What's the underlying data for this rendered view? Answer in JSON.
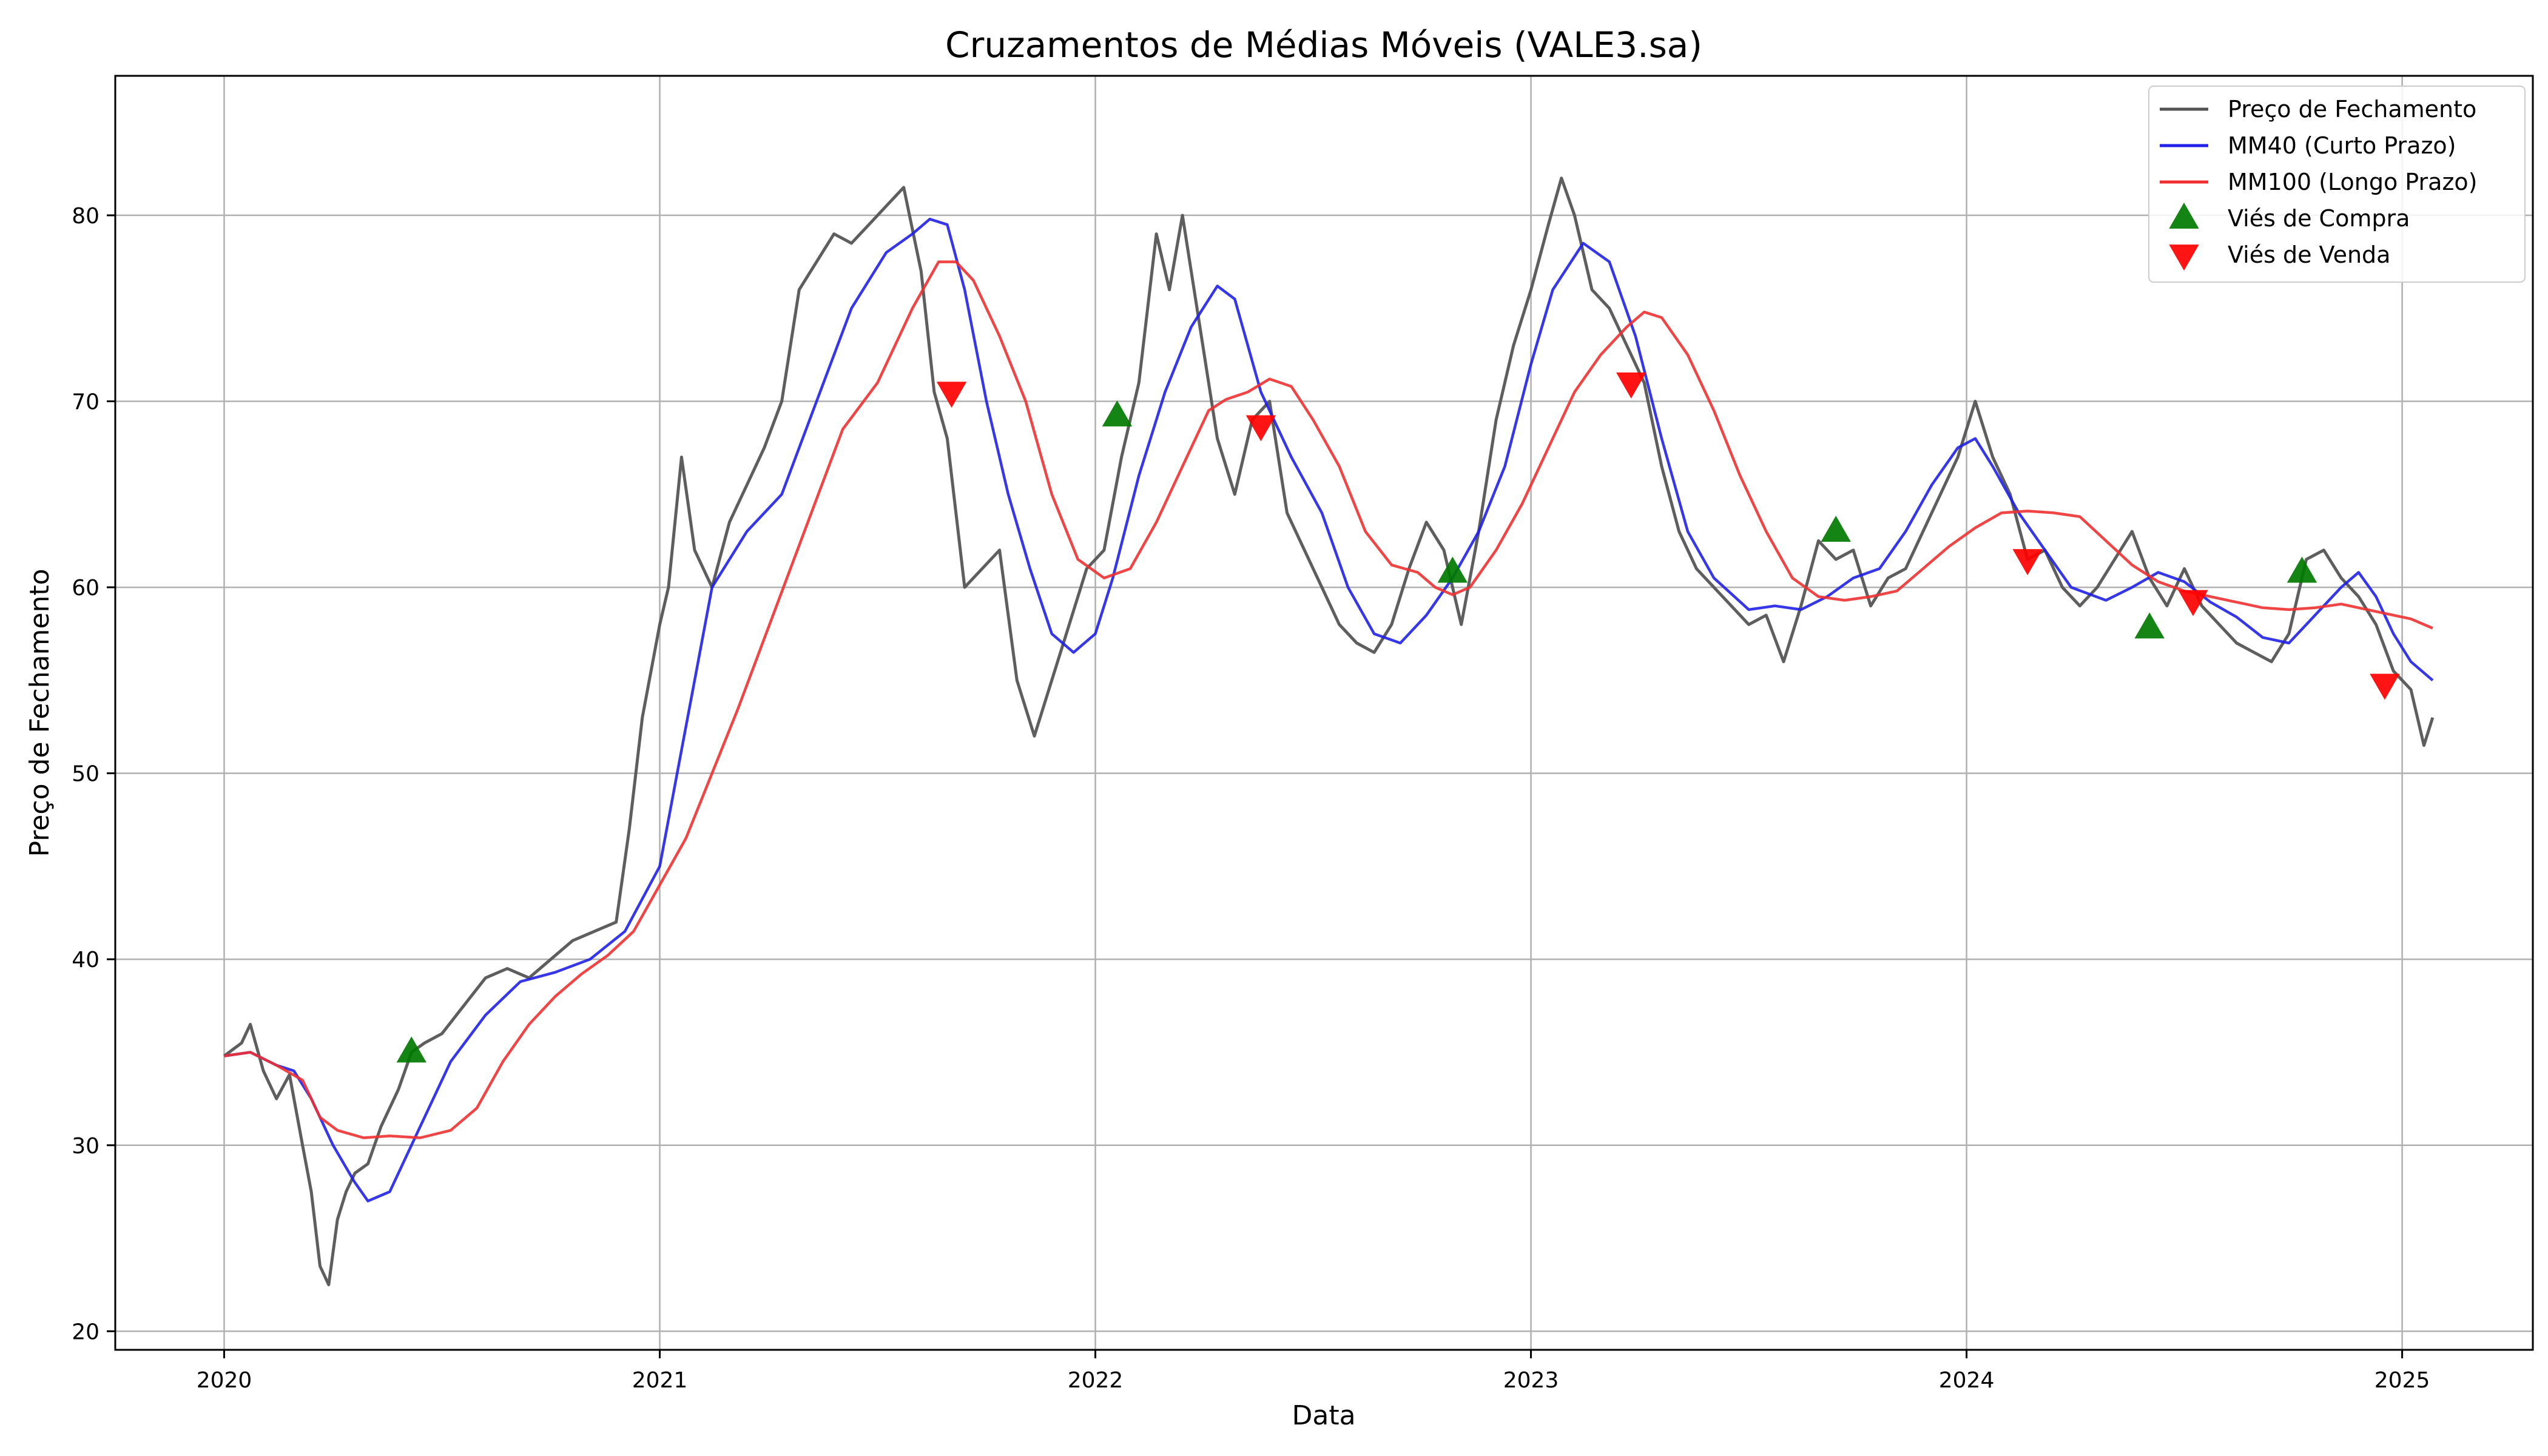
{
  "chart_data": {
    "type": "line",
    "title": "Cruzamentos de Médias Móveis (VALE3.sa)",
    "xlabel": "Data",
    "ylabel": "Preço de Fechamento",
    "xlim": [
      2019.75,
      2025.3
    ],
    "ylim": [
      19,
      87.5
    ],
    "x_ticks": [
      2020,
      2021,
      2022,
      2023,
      2024,
      2025
    ],
    "x_tick_labels": [
      "2020",
      "2021",
      "2022",
      "2023",
      "2024",
      "2025"
    ],
    "y_ticks": [
      20,
      30,
      40,
      50,
      60,
      70,
      80
    ],
    "y_tick_labels": [
      "20",
      "30",
      "40",
      "50",
      "60",
      "70",
      "80"
    ],
    "grid": true,
    "legend_position": "top-right",
    "colors": {
      "price": "#555555",
      "short_ma": "#2020e8",
      "long_ma": "#f03030",
      "buy": "#007a00",
      "sell": "#ff0000"
    },
    "series": [
      {
        "name": "Preço de Fechamento",
        "x": [
          2020.0,
          2020.04,
          2020.06,
          2020.09,
          2020.12,
          2020.15,
          2020.18,
          2020.2,
          2020.22,
          2020.24,
          2020.26,
          2020.28,
          2020.3,
          2020.33,
          2020.36,
          2020.4,
          2020.43,
          2020.46,
          2020.5,
          2020.55,
          2020.6,
          2020.65,
          2020.7,
          2020.75,
          2020.8,
          2020.85,
          2020.9,
          2020.93,
          2020.96,
          2021.0,
          2021.02,
          2021.05,
          2021.08,
          2021.12,
          2021.16,
          2021.2,
          2021.24,
          2021.28,
          2021.32,
          2021.36,
          2021.4,
          2021.44,
          2021.48,
          2021.52,
          2021.56,
          2021.6,
          2021.63,
          2021.66,
          2021.7,
          2021.74,
          2021.78,
          2021.82,
          2021.86,
          2021.9,
          2021.94,
          2021.98,
          2022.02,
          2022.06,
          2022.1,
          2022.14,
          2022.17,
          2022.2,
          2022.24,
          2022.28,
          2022.32,
          2022.36,
          2022.4,
          2022.44,
          2022.48,
          2022.52,
          2022.56,
          2022.6,
          2022.64,
          2022.68,
          2022.72,
          2022.76,
          2022.8,
          2022.84,
          2022.88,
          2022.92,
          2022.96,
          2023.0,
          2023.04,
          2023.07,
          2023.1,
          2023.14,
          2023.18,
          2023.22,
          2023.26,
          2023.3,
          2023.34,
          2023.38,
          2023.42,
          2023.46,
          2023.5,
          2023.54,
          2023.58,
          2023.62,
          2023.66,
          2023.7,
          2023.74,
          2023.78,
          2023.82,
          2023.86,
          2023.9,
          2023.94,
          2023.98,
          2024.02,
          2024.06,
          2024.1,
          2024.14,
          2024.18,
          2024.22,
          2024.26,
          2024.3,
          2024.34,
          2024.38,
          2024.42,
          2024.46,
          2024.5,
          2024.54,
          2024.58,
          2024.62,
          2024.66,
          2024.7,
          2024.74,
          2024.78,
          2024.82,
          2024.86,
          2024.9,
          2024.94,
          2024.98,
          2025.02,
          2025.05,
          2025.07
        ],
        "values": [
          34.8,
          35.5,
          36.5,
          34.0,
          32.5,
          33.8,
          30.0,
          27.5,
          23.5,
          22.5,
          26.0,
          27.5,
          28.5,
          29.0,
          31.0,
          33.0,
          35.0,
          35.5,
          36.0,
          37.5,
          39.0,
          39.5,
          39.0,
          40.0,
          41.0,
          41.5,
          42.0,
          47.0,
          53.0,
          58.0,
          60.0,
          67.0,
          62.0,
          60.0,
          63.5,
          65.5,
          67.5,
          70.0,
          76.0,
          77.5,
          79.0,
          78.5,
          79.5,
          80.5,
          81.5,
          77.0,
          70.5,
          68.0,
          60.0,
          61.0,
          62.0,
          55.0,
          52.0,
          55.0,
          58.0,
          61.0,
          62.0,
          67.0,
          71.0,
          79.0,
          76.0,
          80.0,
          74.0,
          68.0,
          65.0,
          69.0,
          70.0,
          64.0,
          62.0,
          60.0,
          58.0,
          57.0,
          56.5,
          58.0,
          61.0,
          63.5,
          62.0,
          58.0,
          63.0,
          69.0,
          73.0,
          76.0,
          79.5,
          82.0,
          80.0,
          76.0,
          75.0,
          73.0,
          71.0,
          66.5,
          63.0,
          61.0,
          60.0,
          59.0,
          58.0,
          58.5,
          56.0,
          59.0,
          62.5,
          61.5,
          62.0,
          59.0,
          60.5,
          61.0,
          63.0,
          65.0,
          67.0,
          70.0,
          67.0,
          65.0,
          61.5,
          62.0,
          60.0,
          59.0,
          60.0,
          61.5,
          63.0,
          60.5,
          59.0,
          61.0,
          59.0,
          58.0,
          57.0,
          56.5,
          56.0,
          57.5,
          61.5,
          62.0,
          60.5,
          59.5,
          58.0,
          55.5,
          54.5,
          51.5,
          53.0
        ]
      },
      {
        "name": "MM40 (Curto Prazo)",
        "x": [
          2020.0,
          2020.06,
          2020.12,
          2020.16,
          2020.2,
          2020.25,
          2020.3,
          2020.33,
          2020.38,
          2020.45,
          2020.52,
          2020.6,
          2020.68,
          2020.76,
          2020.84,
          2020.92,
          2021.0,
          2021.04,
          2021.08,
          2021.12,
          2021.2,
          2021.28,
          2021.36,
          2021.44,
          2021.52,
          2021.58,
          2021.62,
          2021.66,
          2021.7,
          2021.75,
          2021.8,
          2021.85,
          2021.9,
          2021.95,
          2022.0,
          2022.04,
          2022.1,
          2022.16,
          2022.22,
          2022.28,
          2022.32,
          2022.38,
          2022.45,
          2022.52,
          2022.58,
          2022.64,
          2022.7,
          2022.76,
          2022.82,
          2022.88,
          2022.94,
          2023.0,
          2023.05,
          2023.12,
          2023.18,
          2023.24,
          2023.3,
          2023.36,
          2023.42,
          2023.5,
          2023.56,
          2023.62,
          2023.68,
          2023.74,
          2023.8,
          2023.86,
          2023.92,
          2023.98,
          2024.02,
          2024.06,
          2024.12,
          2024.18,
          2024.24,
          2024.32,
          2024.38,
          2024.44,
          2024.5,
          2024.56,
          2024.62,
          2024.68,
          2024.74,
          2024.8,
          2024.86,
          2024.9,
          2024.94,
          2024.98,
          2025.02,
          2025.07
        ],
        "values": [
          34.8,
          35.0,
          34.3,
          34.0,
          32.5,
          30.0,
          28.0,
          27.0,
          27.5,
          31.0,
          34.5,
          37.0,
          38.8,
          39.3,
          40.0,
          41.5,
          45.0,
          50.0,
          55.0,
          60.0,
          63.0,
          65.0,
          70.0,
          75.0,
          78.0,
          79.0,
          79.8,
          79.5,
          76.0,
          70.0,
          65.0,
          61.0,
          57.5,
          56.5,
          57.5,
          60.5,
          66.0,
          70.5,
          74.0,
          76.2,
          75.5,
          70.5,
          67.0,
          64.0,
          60.0,
          57.5,
          57.0,
          58.5,
          60.5,
          63.0,
          66.5,
          72.0,
          76.0,
          78.5,
          77.5,
          73.5,
          68.0,
          63.0,
          60.5,
          58.8,
          59.0,
          58.8,
          59.5,
          60.5,
          61.0,
          63.0,
          65.5,
          67.5,
          68.0,
          66.5,
          64.0,
          62.0,
          60.0,
          59.3,
          60.0,
          60.8,
          60.3,
          59.2,
          58.4,
          57.3,
          57.0,
          58.5,
          60.0,
          60.8,
          59.5,
          57.5,
          56.0,
          55.0
        ]
      },
      {
        "name": "MM100 (Longo Prazo)",
        "x": [
          2020.0,
          2020.06,
          2020.12,
          2020.18,
          2020.22,
          2020.26,
          2020.32,
          2020.38,
          2020.45,
          2020.52,
          2020.58,
          2020.64,
          2020.7,
          2020.76,
          2020.82,
          2020.88,
          2020.94,
          2021.0,
          2021.06,
          2021.12,
          2021.18,
          2021.26,
          2021.34,
          2021.42,
          2021.5,
          2021.58,
          2021.64,
          2021.68,
          2021.72,
          2021.78,
          2021.84,
          2021.9,
          2021.96,
          2022.02,
          2022.08,
          2022.14,
          2022.2,
          2022.26,
          2022.3,
          2022.35,
          2022.4,
          2022.45,
          2022.5,
          2022.56,
          2022.62,
          2022.68,
          2022.74,
          2022.78,
          2022.82,
          2022.86,
          2022.92,
          2022.98,
          2023.04,
          2023.1,
          2023.16,
          2023.22,
          2023.26,
          2023.3,
          2023.36,
          2023.42,
          2023.48,
          2023.54,
          2023.6,
          2023.66,
          2023.72,
          2023.78,
          2023.84,
          2023.9,
          2023.96,
          2024.02,
          2024.08,
          2024.14,
          2024.2,
          2024.26,
          2024.32,
          2024.38,
          2024.44,
          2024.5,
          2024.56,
          2024.62,
          2024.68,
          2024.74,
          2024.8,
          2024.86,
          2024.92,
          2024.98,
          2025.02,
          2025.07
        ],
        "values": [
          34.8,
          35.0,
          34.3,
          33.5,
          31.5,
          30.8,
          30.4,
          30.5,
          30.4,
          30.8,
          32.0,
          34.5,
          36.5,
          38.0,
          39.2,
          40.2,
          41.5,
          44.0,
          46.5,
          50.0,
          53.5,
          58.5,
          63.5,
          68.5,
          71.0,
          75.0,
          77.5,
          77.5,
          76.5,
          73.5,
          70.0,
          65.0,
          61.5,
          60.5,
          61.0,
          63.5,
          66.5,
          69.5,
          70.1,
          70.5,
          71.2,
          70.8,
          69.0,
          66.5,
          63.0,
          61.2,
          60.8,
          60.0,
          59.6,
          60.0,
          62.0,
          64.5,
          67.5,
          70.5,
          72.5,
          74.0,
          74.8,
          74.5,
          72.5,
          69.5,
          66.0,
          63.0,
          60.5,
          59.5,
          59.3,
          59.5,
          59.8,
          61.0,
          62.2,
          63.2,
          64.0,
          64.1,
          64.0,
          63.8,
          62.5,
          61.2,
          60.3,
          59.8,
          59.5,
          59.2,
          58.9,
          58.8,
          58.9,
          59.1,
          58.8,
          58.5,
          58.3,
          57.8
        ]
      }
    ],
    "markers": [
      {
        "name": "Viés de Compra",
        "shape": "triangle-up",
        "points": [
          {
            "x": 2020.43,
            "y": 35.0
          },
          {
            "x": 2022.05,
            "y": 69.2
          },
          {
            "x": 2022.82,
            "y": 60.8
          },
          {
            "x": 2023.7,
            "y": 63.0
          },
          {
            "x": 2024.42,
            "y": 57.8
          },
          {
            "x": 2024.77,
            "y": 60.8
          }
        ]
      },
      {
        "name": "Viés de Venda",
        "shape": "triangle-down",
        "points": [
          {
            "x": 2021.67,
            "y": 70.5
          },
          {
            "x": 2022.38,
            "y": 68.7
          },
          {
            "x": 2023.23,
            "y": 71.0
          },
          {
            "x": 2024.14,
            "y": 61.5
          },
          {
            "x": 2024.52,
            "y": 59.3
          },
          {
            "x": 2024.96,
            "y": 54.8
          }
        ]
      }
    ]
  }
}
